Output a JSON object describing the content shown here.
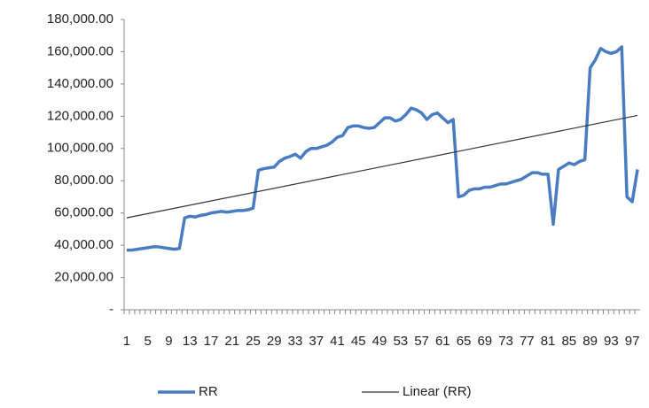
{
  "chart_data": {
    "type": "line",
    "categories": [
      1,
      null,
      null,
      null,
      5,
      null,
      null,
      null,
      9,
      null,
      null,
      null,
      13,
      null,
      null,
      null,
      17,
      null,
      null,
      null,
      21,
      null,
      null,
      null,
      25,
      null,
      null,
      null,
      29,
      null,
      null,
      null,
      33,
      null,
      null,
      null,
      37,
      null,
      null,
      null,
      41,
      null,
      null,
      null,
      45,
      null,
      null,
      null,
      49,
      null,
      null,
      null,
      53,
      null,
      null,
      null,
      57,
      null,
      null,
      null,
      61,
      null,
      null,
      null,
      65,
      null,
      null,
      null,
      69,
      null,
      null,
      null,
      73,
      null,
      null,
      null,
      77,
      null,
      null,
      null,
      81,
      null,
      null,
      null,
      85,
      null,
      null,
      null,
      89,
      null,
      null,
      null,
      93,
      null,
      null,
      null,
      97,
      null
    ],
    "series": [
      {
        "name": "RR",
        "color": "#4a7cc4",
        "values": [
          37000,
          37000,
          37500,
          38000,
          38500,
          39000,
          39000,
          38500,
          38000,
          37500,
          38000,
          57000,
          58000,
          57500,
          58500,
          59000,
          60000,
          60500,
          61000,
          60500,
          61000,
          61500,
          61500,
          62000,
          63000,
          86500,
          87500,
          88000,
          88500,
          92000,
          94000,
          95000,
          96500,
          94000,
          98000,
          100000,
          100000,
          101000,
          102000,
          104000,
          107000,
          108000,
          113000,
          114000,
          114000,
          113000,
          112500,
          113000,
          116000,
          119000,
          119000,
          117000,
          118000,
          121000,
          125000,
          124000,
          122000,
          118000,
          121000,
          122000,
          119000,
          116000,
          118000,
          70000,
          71000,
          74000,
          75000,
          75000,
          76000,
          76000,
          77000,
          78000,
          78000,
          79000,
          80000,
          81000,
          83000,
          85000,
          85000,
          84000,
          84000,
          53000,
          87000,
          89000,
          91000,
          90000,
          92000,
          93000,
          150000,
          155000,
          162000,
          160000,
          159000,
          160000,
          163000,
          70000,
          67000,
          87000
        ]
      },
      {
        "name": "Linear (RR)",
        "color": "#333333",
        "x": [
          1,
          98
        ],
        "values": [
          57000,
          120500
        ]
      }
    ],
    "ylim": [
      0,
      180000
    ],
    "yticks": [
      {
        "value": 0,
        "label": "-"
      },
      {
        "value": 20000,
        "label": "20,000.00"
      },
      {
        "value": 40000,
        "label": "40,000.00"
      },
      {
        "value": 60000,
        "label": "60,000.00"
      },
      {
        "value": 80000,
        "label": "80,000.00"
      },
      {
        "value": 100000,
        "label": "100,000.00"
      },
      {
        "value": 120000,
        "label": "120,000.00"
      },
      {
        "value": 140000,
        "label": "140,000.00"
      },
      {
        "value": 160000,
        "label": "160,000.00"
      },
      {
        "value": 180000,
        "label": "180,000.00"
      }
    ],
    "legend": "bottom"
  }
}
